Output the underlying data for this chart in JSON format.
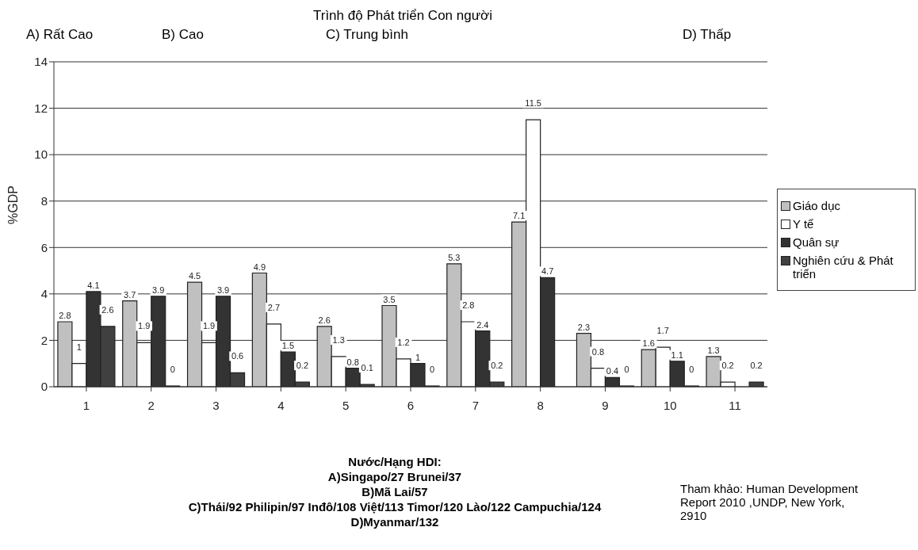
{
  "chart_data": {
    "type": "bar",
    "title": "Trình độ Phát triển Con người",
    "xlabel": "Nước/Hạng HDI:",
    "ylabel": "%GDP",
    "annotations": [
      "A) Rất Cao",
      "B) Cao",
      "C) Trung bình",
      "D) Thấp",
      "A)Singapo/27 Brunei/37",
      "B)Mã Lai/57",
      "C)Thái/92 Philipin/97 Inđô/108 Việt/113 Timor/120 Lào/122 Campuchia/124",
      "D)Myanmar/132",
      "Tham khảo: Human Development Report 2010 ,UNDP, New York, 2910"
    ],
    "categories": [
      "1",
      "2",
      "3",
      "4",
      "5",
      "6",
      "7",
      "8",
      "9",
      "10",
      "11"
    ],
    "series": [
      {
        "name": "Giáo dục",
        "color": "#c0c0c0",
        "values": [
          2.8,
          3.7,
          4.5,
          4.9,
          2.6,
          3.5,
          5.3,
          7.1,
          2.3,
          1.6,
          1.3
        ]
      },
      {
        "name": "Y tế",
        "color": "#ffffff",
        "values": [
          1,
          1.9,
          1.9,
          2.7,
          1.3,
          1.2,
          2.8,
          11.5,
          0.8,
          1.7,
          0.2
        ]
      },
      {
        "name": "Quân sự",
        "color": "#333333",
        "values": [
          4.1,
          3.9,
          3.9,
          1.5,
          0.8,
          1,
          2.4,
          4.7,
          0.4,
          1.1,
          null
        ]
      },
      {
        "name": "Nghiên cứu & Phát triển",
        "color": "#404040",
        "values": [
          2.6,
          0,
          0.6,
          0.2,
          0.1,
          0,
          0.2,
          null,
          0,
          0,
          0.2
        ]
      }
    ],
    "ylim": [
      0,
      14
    ],
    "yticks": [
      0,
      2,
      4,
      6,
      8,
      10,
      12,
      14
    ],
    "grid": "y",
    "legend": "right",
    "data_labels": true
  }
}
